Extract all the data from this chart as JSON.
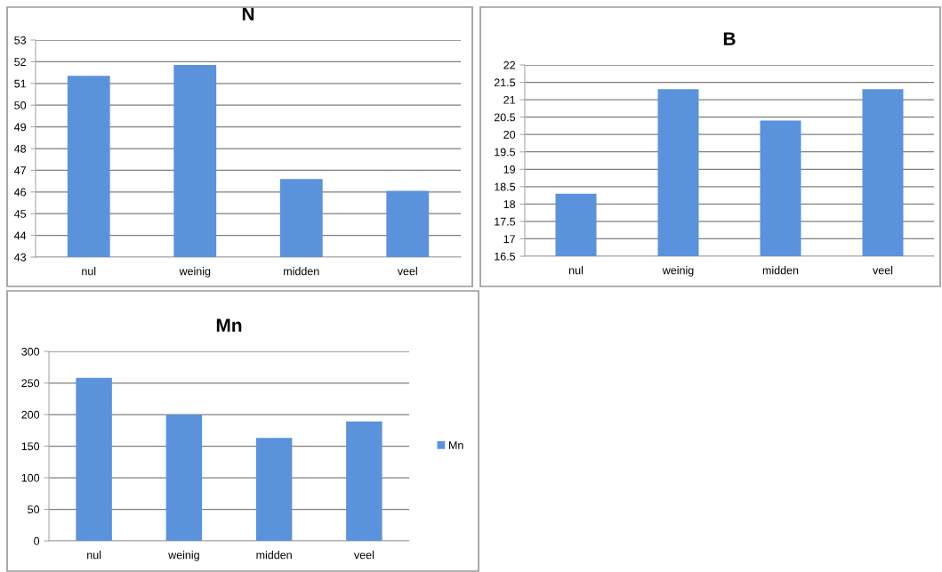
{
  "chart_data": [
    {
      "type": "bar",
      "title": "N",
      "categories": [
        "nul",
        "weinig",
        "midden",
        "veel"
      ],
      "series": [
        {
          "color": "#5b92dc",
          "values": [
            51.35,
            51.85,
            46.6,
            46.05
          ]
        }
      ],
      "ylim": [
        43,
        53
      ],
      "yticks": [
        43,
        44,
        45,
        46,
        47,
        48,
        49,
        50,
        51,
        52,
        53
      ],
      "grid": "y",
      "legend": false
    },
    {
      "type": "bar",
      "title": "B",
      "categories": [
        "nul",
        "weinig",
        "midden",
        "veel"
      ],
      "series": [
        {
          "color": "#5b92dc",
          "values": [
            18.3,
            21.3,
            20.4,
            21.3
          ]
        }
      ],
      "ylim": [
        16.5,
        22
      ],
      "yticks": [
        16.5,
        17,
        17.5,
        18,
        18.5,
        19,
        19.5,
        20,
        20.5,
        21,
        21.5,
        22
      ],
      "grid": "y",
      "legend": false
    },
    {
      "type": "bar",
      "title": "Mn",
      "categories": [
        "nul",
        "weinig",
        "midden",
        "veel"
      ],
      "series": [
        {
          "name": "Mn",
          "color": "#5b92dc",
          "values": [
            258,
            200,
            163,
            189
          ]
        }
      ],
      "ylim": [
        0,
        300
      ],
      "yticks": [
        0,
        50,
        100,
        150,
        200,
        250,
        300
      ],
      "grid": "y",
      "legend": "right"
    }
  ]
}
